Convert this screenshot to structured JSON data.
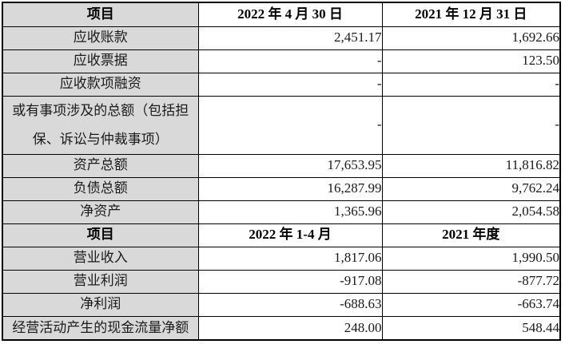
{
  "colors": {
    "label_column_bg": "#d9d9d9",
    "border": "#000000",
    "text": "#1a1a1a"
  },
  "table": {
    "sections": [
      {
        "header": {
          "item": "项目",
          "col1": "2022 年 4 月 30 日",
          "col2": "2021 年 12 月 31 日"
        },
        "rows": [
          {
            "label": "应收账款",
            "v1": "2,451.17",
            "v2": "1,692.66"
          },
          {
            "label": "应收票据",
            "v1": "-",
            "v2": "123.50"
          },
          {
            "label": "应收款项融资",
            "v1": "-",
            "v2": "-"
          },
          {
            "label": "或有事项涉及的总额（包括担保、诉讼与仲裁事项）",
            "v1": "-",
            "v2": "-"
          },
          {
            "label": "资产总额",
            "v1": "17,653.95",
            "v2": "11,816.82"
          },
          {
            "label": "负债总额",
            "v1": "16,287.99",
            "v2": "9,762.24"
          },
          {
            "label": "净资产",
            "v1": "1,365.96",
            "v2": "2,054.58"
          }
        ]
      },
      {
        "header": {
          "item": "项目",
          "col1": "2022 年 1-4 月",
          "col2": "2021 年度"
        },
        "rows": [
          {
            "label": "营业收入",
            "v1": "1,817.06",
            "v2": "1,990.50"
          },
          {
            "label": "营业利润",
            "v1": "-917.08",
            "v2": "-877.72"
          },
          {
            "label": "净利润",
            "v1": "-688.63",
            "v2": "-663.74"
          },
          {
            "label": "经营活动产生的现金流量净额",
            "v1": "248.00",
            "v2": "548.44"
          }
        ]
      }
    ]
  }
}
